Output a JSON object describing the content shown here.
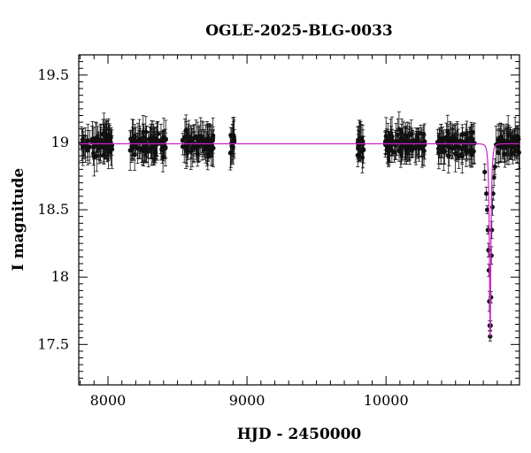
{
  "chart_data": {
    "type": "scatter",
    "title": "OGLE-2025-BLG-0033",
    "xlabel": "HJD - 2450000",
    "ylabel": "I magnitude",
    "xlim": [
      7790,
      10960
    ],
    "ylim": [
      19.65,
      17.2
    ],
    "y_inverted": true,
    "grid": false,
    "legend": "none",
    "xticks": [
      8000,
      9000,
      10000
    ],
    "xtick_labels": [
      "8000",
      "9000",
      "10000"
    ],
    "yticks": [
      17.5,
      18,
      18.5,
      19,
      19.5
    ],
    "ytick_labels": [
      "17.5",
      "18",
      "18.5",
      "19",
      "19.5"
    ],
    "colors": {
      "points": "#111111",
      "model": "#cc22cc"
    },
    "series": [
      {
        "kind": "observations",
        "seasons": [
          [
            7810,
            8030
          ],
          [
            8160,
            8420
          ],
          [
            8530,
            8760
          ],
          [
            8880,
            8920
          ],
          [
            9790,
            9850
          ],
          [
            9990,
            10280
          ],
          [
            10370,
            10640
          ],
          [
            10790,
            10960
          ]
        ],
        "baseline_mag": 18.99,
        "peak_points": [
          {
            "x": 10710,
            "y": 18.78
          },
          {
            "x": 10722,
            "y": 18.62
          },
          {
            "x": 10728,
            "y": 18.5
          },
          {
            "x": 10733,
            "y": 18.35
          },
          {
            "x": 10737,
            "y": 18.2
          },
          {
            "x": 10740,
            "y": 18.05
          },
          {
            "x": 10743,
            "y": 17.82
          },
          {
            "x": 10746,
            "y": 17.64
          },
          {
            "x": 10749,
            "y": 17.56
          },
          {
            "x": 10752,
            "y": 17.64
          },
          {
            "x": 10755,
            "y": 17.85
          },
          {
            "x": 10758,
            "y": 18.16
          },
          {
            "x": 10761,
            "y": 18.35
          },
          {
            "x": 10765,
            "y": 18.52
          },
          {
            "x": 10770,
            "y": 18.62
          },
          {
            "x": 10776,
            "y": 18.74
          },
          {
            "x": 10783,
            "y": 18.82
          }
        ]
      },
      {
        "kind": "model",
        "baseline_mag": 18.99,
        "peak_t": 10749,
        "peak_mag": 17.56,
        "timescale_days": 12
      }
    ]
  }
}
